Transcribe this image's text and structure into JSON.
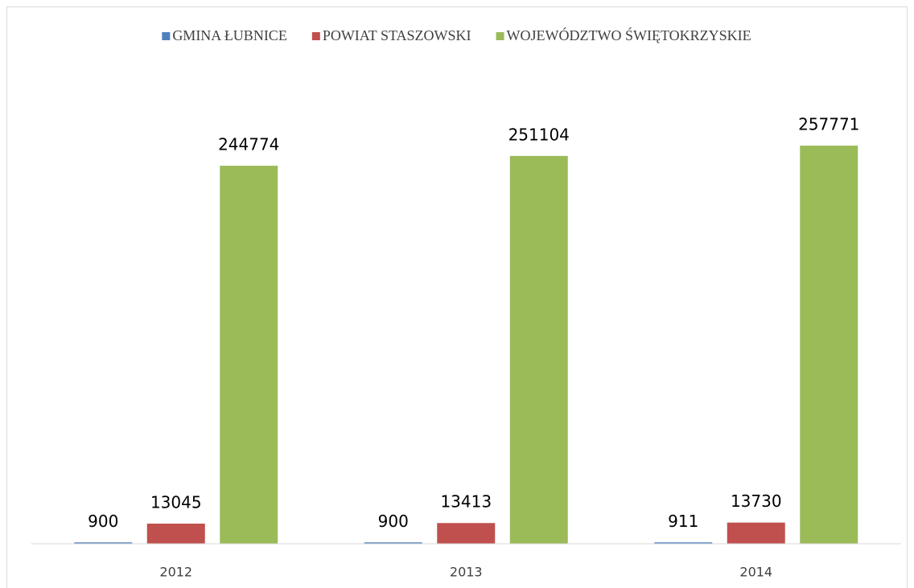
{
  "chart_data": {
    "type": "bar",
    "categories": [
      "2012",
      "2013",
      "2014"
    ],
    "series": [
      {
        "name": "GMINA ŁUBNICE",
        "color": "#4f81bd",
        "values": [
          900,
          900,
          911
        ]
      },
      {
        "name": "POWIAT STASZOWSKI",
        "color": "#c0504d",
        "values": [
          13045,
          13413,
          13730
        ]
      },
      {
        "name": "WOJEWÓDZTWO ŚWIĘTOKRZYSKIE",
        "color": "#9bbb59",
        "values": [
          244774,
          251104,
          257771
        ]
      }
    ],
    "ylim": [
      0,
      300000
    ],
    "legend": "top"
  }
}
